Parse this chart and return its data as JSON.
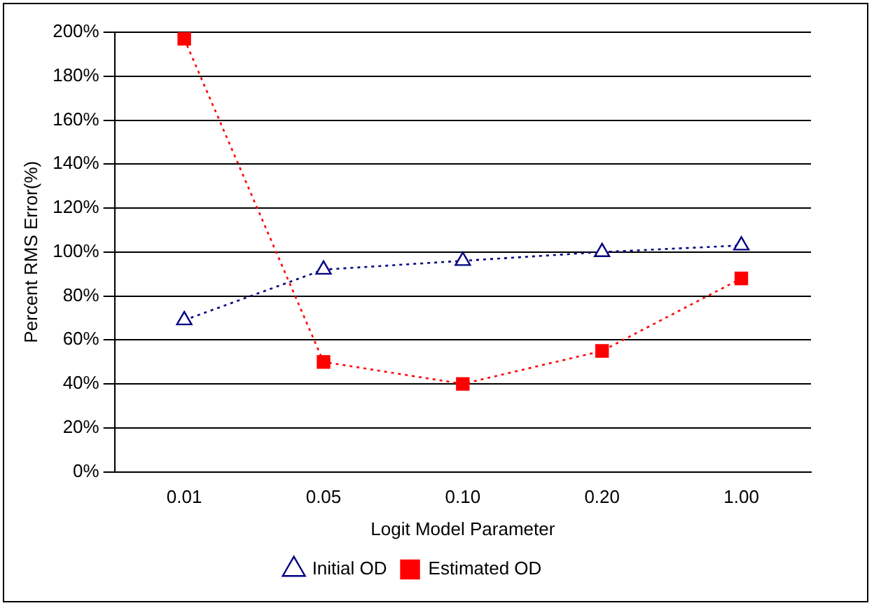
{
  "chart_data": {
    "type": "line",
    "xlabel": "Logit Model Parameter",
    "ylabel": "Percent RMS Error(%)",
    "categories": [
      "0.01",
      "0.05",
      "0.10",
      "0.20",
      "1.00"
    ],
    "series": [
      {
        "name": "Initial OD",
        "color": "#000080",
        "values": [
          69,
          92,
          96,
          100,
          103
        ],
        "marker": "triangle",
        "line_style": "dotted"
      },
      {
        "name": "Estimated OD",
        "color": "#ff0000",
        "values": [
          197,
          50,
          40,
          55,
          88
        ],
        "marker": "square",
        "line_style": "dotted"
      }
    ],
    "ylim": [
      0,
      200
    ],
    "yticks": [
      {
        "value": 0,
        "label": "0%"
      },
      {
        "value": 20,
        "label": "20%"
      },
      {
        "value": 40,
        "label": "40%"
      },
      {
        "value": 60,
        "label": "60%"
      },
      {
        "value": 80,
        "label": "80%"
      },
      {
        "value": 100,
        "label": "100%"
      },
      {
        "value": 120,
        "label": "120%"
      },
      {
        "value": 140,
        "label": "140%"
      },
      {
        "value": 160,
        "label": "160%"
      },
      {
        "value": 180,
        "label": "180%"
      },
      {
        "value": 200,
        "label": "200%"
      }
    ],
    "grid": "y",
    "legend": "bottom"
  }
}
